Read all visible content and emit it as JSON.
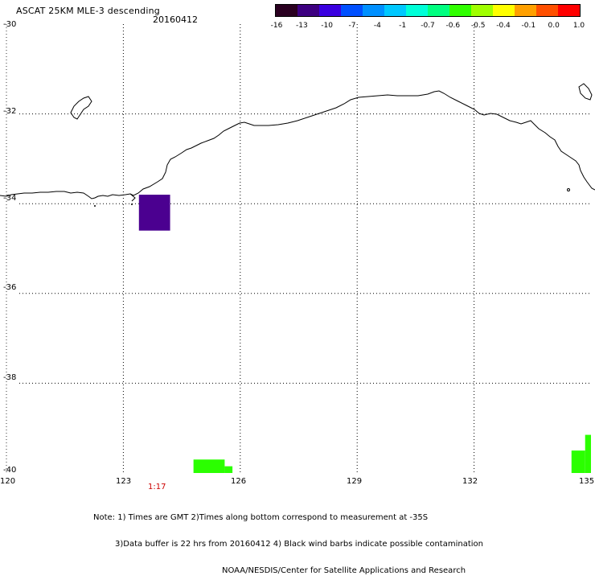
{
  "header": {
    "title": "ASCAT 25KM MLE-3 descending",
    "date": "20160412"
  },
  "colorbar": {
    "ticks": [
      "-16",
      "-13",
      "-10",
      "-7",
      "-4",
      "-1",
      "-0.7",
      "-0.6",
      "-0.5",
      "-0.4",
      "-0.1",
      "0.0",
      "1.0"
    ],
    "colors": [
      "#2a0020",
      "#3d0080",
      "#3a00e0",
      "#0050ff",
      "#0090ff",
      "#00c8ff",
      "#00ffd8",
      "#00ff80",
      "#30ff00",
      "#a0ff00",
      "#ffff00",
      "#ffa000",
      "#ff5000",
      "#ff0000"
    ]
  },
  "axes": {
    "lat_labels": [
      "-30",
      "-32",
      "-34",
      "-36",
      "-38",
      "-40"
    ],
    "lon_labels": [
      "120",
      "123",
      "126",
      "129",
      "132",
      "135"
    ]
  },
  "pass_time": "1:17",
  "notes": [
    "Note: 1) Times are GMT 2)Times along bottom correspond to measurement at -35S",
    "3)Data buffer is 22 hrs from 20160412 4) Black wind barbs indicate possible contamination",
    "NOAA/NESDIS/Center for Satellite Applications and Research"
  ],
  "data_cells": [
    {
      "lon_min": 123.4,
      "lon_max": 124.2,
      "lat_min": -34.6,
      "lat_max": -33.8,
      "color": "#4b0090"
    },
    {
      "lon_min": 124.8,
      "lon_max": 125.6,
      "lat_min": -40.0,
      "lat_max": -39.7,
      "color": "#2bff00"
    },
    {
      "lon_min": 125.6,
      "lon_max": 125.8,
      "lat_min": -40.0,
      "lat_max": -39.85,
      "color": "#2bff00"
    },
    {
      "lon_min": 134.5,
      "lon_max": 134.85,
      "lat_min": -40.0,
      "lat_max": -39.5,
      "color": "#2bff00"
    },
    {
      "lon_min": 134.85,
      "lon_max": 135.0,
      "lat_min": -40.0,
      "lat_max": -39.15,
      "color": "#2bff00"
    }
  ]
}
